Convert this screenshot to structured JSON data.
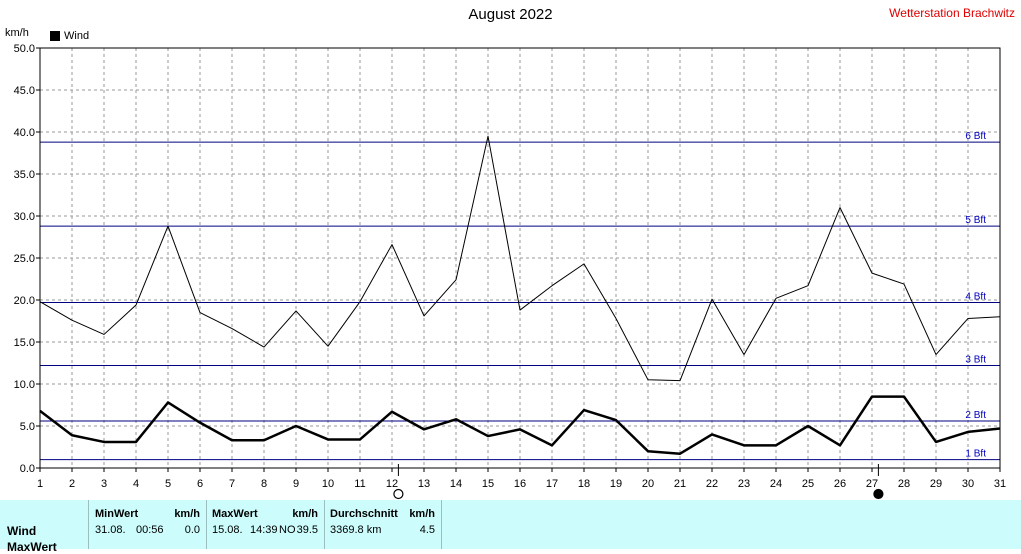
{
  "title": "August 2022",
  "station": "Wetterstation Brachwitz",
  "unit": "km/h",
  "legend": "Wind",
  "chart_data": {
    "type": "line",
    "title": "August 2022",
    "ylabel": "km/h",
    "ylim": [
      0,
      50
    ],
    "yticks": [
      "0.0",
      "5.0",
      "10.0",
      "15.0",
      "20.0",
      "25.0",
      "30.0",
      "35.0",
      "40.0",
      "45.0",
      "50.0"
    ],
    "x": [
      1,
      2,
      3,
      4,
      5,
      6,
      7,
      8,
      9,
      10,
      11,
      12,
      13,
      14,
      15,
      16,
      17,
      18,
      19,
      20,
      21,
      22,
      23,
      24,
      25,
      26,
      27,
      28,
      29,
      30,
      31
    ],
    "series": [
      {
        "name": "Wind",
        "style": "thick",
        "values": [
          6.8,
          3.9,
          3.1,
          3.1,
          7.8,
          5.4,
          3.3,
          3.3,
          5.0,
          3.4,
          3.4,
          6.7,
          4.6,
          5.8,
          3.8,
          4.6,
          2.7,
          6.9,
          5.7,
          2.0,
          1.7,
          4.0,
          2.7,
          2.7,
          5.0,
          2.7,
          8.5,
          8.5,
          3.1,
          4.3,
          4.7
        ]
      },
      {
        "style": "thin",
        "values": [
          19.8,
          17.6,
          15.9,
          19.4,
          28.8,
          18.5,
          16.6,
          14.4,
          18.7,
          14.5,
          19.8,
          26.6,
          18.1,
          22.4,
          39.5,
          18.8,
          21.7,
          24.3,
          17.8,
          10.5,
          10.4,
          20.1,
          13.5,
          20.2,
          21.7,
          31.0,
          23.2,
          21.9,
          13.5,
          17.8,
          18.0
        ]
      }
    ],
    "beaufort": [
      {
        "label": "1 Bft",
        "value": 1.0
      },
      {
        "label": "2 Bft",
        "value": 5.6
      },
      {
        "label": "3 Bft",
        "value": 12.2
      },
      {
        "label": "4 Bft",
        "value": 19.7
      },
      {
        "label": "5 Bft",
        "value": 28.8
      },
      {
        "label": "6 Bft",
        "value": 38.8
      }
    ],
    "moon_phases": [
      {
        "day": 12,
        "phase": "full"
      },
      {
        "day": 27,
        "phase": "new"
      }
    ],
    "colors": {
      "line": "#000000",
      "beaufort": "#000080",
      "beaufort_label": "#0000c0",
      "grid": "#999999"
    }
  },
  "footer": {
    "row_labels": [
      "Wind",
      "MaxWert"
    ],
    "min": {
      "head": "MinWert",
      "unit": "km/h",
      "date": "31.08.",
      "time": "00:56",
      "value": "0.0"
    },
    "max": {
      "head": "MaxWert",
      "unit": "km/h",
      "date": "15.08.",
      "time": "14:39",
      "dir": "NO",
      "value": "39.5"
    },
    "avg": {
      "head": "Durchschnitt",
      "unit": "km/h",
      "total": "3369.8 km",
      "value": "4.5"
    }
  }
}
